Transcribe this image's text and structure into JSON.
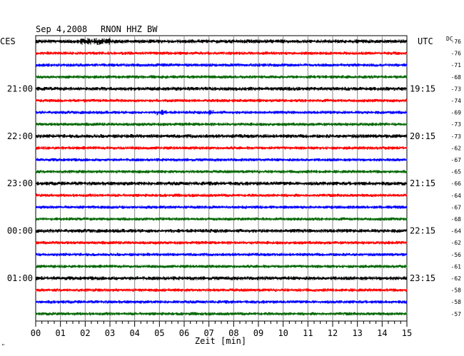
{
  "header": {
    "date": "Sep 4,2008",
    "station": "RNON HHZ BW",
    "left_zone": "CES",
    "right_zone": "UTC",
    "dc_label": "DC"
  },
  "footer": {
    "x_axis_label": "Zeit [min]",
    "corner_mark": "\""
  },
  "colors": {
    "trace_cycle": [
      "#000000",
      "#ff0000",
      "#0000ff",
      "#006600"
    ],
    "grid": "#000000",
    "background": "#ffffff"
  },
  "chart_data": {
    "type": "line",
    "title": "Sep 4,2008   RNON HHZ BW",
    "xlabel": "Zeit [min]",
    "ylabel": "",
    "xlim": [
      0,
      15
    ],
    "x_ticks": [
      "00",
      "01",
      "02",
      "03",
      "04",
      "05",
      "06",
      "07",
      "08",
      "09",
      "10",
      "11",
      "12",
      "13",
      "14",
      "15"
    ],
    "x_minor_ticks_per_minute": 4,
    "grid": true,
    "line_count": 24,
    "left_time_labels": [
      {
        "line": 4,
        "label": "21:00"
      },
      {
        "line": 8,
        "label": "22:00"
      },
      {
        "line": 12,
        "label": "23:00"
      },
      {
        "line": 16,
        "label": "00:00"
      },
      {
        "line": 20,
        "label": "01:00"
      }
    ],
    "right_time_labels": [
      {
        "line": 4,
        "label": "19:15"
      },
      {
        "line": 8,
        "label": "20:15"
      },
      {
        "line": 12,
        "label": "21:15"
      },
      {
        "line": 16,
        "label": "22:15"
      },
      {
        "line": 20,
        "label": "23:15"
      }
    ],
    "dc_offsets": [
      -76,
      -76,
      -71,
      -68,
      -73,
      -74,
      -69,
      -73,
      -73,
      -62,
      -67,
      -65,
      -66,
      -64,
      -67,
      -68,
      -64,
      -62,
      -56,
      -61,
      -62,
      -58,
      -58,
      -57
    ],
    "trace_colors_by_line": [
      "black",
      "red",
      "blue",
      "green",
      "black",
      "red",
      "blue",
      "green",
      "black",
      "red",
      "blue",
      "green",
      "black",
      "red",
      "blue",
      "green",
      "black",
      "red",
      "blue",
      "green",
      "black",
      "red",
      "blue",
      "green"
    ],
    "notable_events": [
      {
        "line": 0,
        "x_min": [
          1.8,
          3.0
        ],
        "note": "higher amplitude burst"
      },
      {
        "line": 6,
        "x_min": [
          4.9,
          5.3
        ],
        "note": "small burst"
      },
      {
        "line": 6,
        "x_min": [
          7.0,
          7.2
        ],
        "note": "small burst"
      }
    ]
  }
}
